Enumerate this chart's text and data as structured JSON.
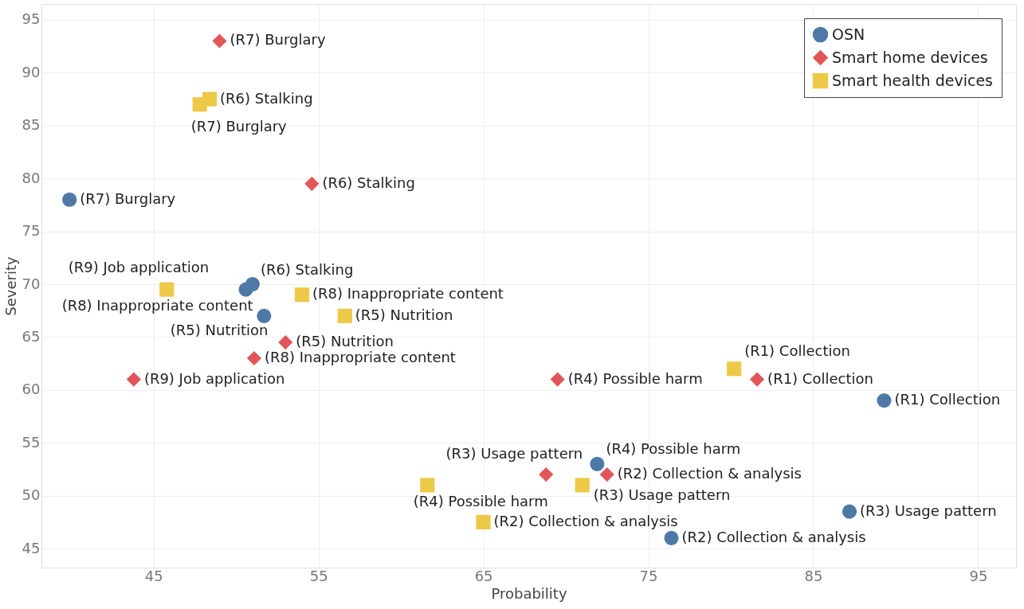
{
  "chart_data": {
    "type": "scatter",
    "xlabel": "Probability",
    "ylabel": "Severity",
    "xlim": [
      38.2,
      97.3
    ],
    "ylim": [
      43.2,
      96.5
    ],
    "xticks": [
      45,
      55,
      65,
      75,
      85,
      95
    ],
    "yticks": [
      45,
      50,
      55,
      60,
      65,
      70,
      75,
      80,
      85,
      90,
      95
    ],
    "grid": true,
    "legend": "top right",
    "series": [
      {
        "name": "OSN",
        "color": "#4e79a7",
        "marker": "circle",
        "x": [
          39.9,
          51.0,
          50.6,
          51.7,
          71.9,
          76.4,
          89.3,
          87.2
        ],
        "values": [
          78,
          70,
          69.5,
          67,
          53,
          46,
          59,
          48.5
        ],
        "value_labels": [
          "(R7) Burglary",
          "(R6) Stalking",
          "(R8) Inappropriate content",
          "(R5) Nutrition",
          "(R4) Possible harm",
          "(R2) Collection & analysis",
          "(R1) Collection",
          "(R3) Usage pattern"
        ]
      },
      {
        "name": "Smart home devices",
        "color": "#e15759",
        "marker": "diamond",
        "x": [
          49.0,
          54.6,
          53.0,
          51.1,
          43.8,
          69.5,
          81.6,
          68.8,
          72.5
        ],
        "values": [
          93,
          79.5,
          64.5,
          63,
          61,
          61,
          61,
          52,
          52
        ],
        "value_labels": [
          "(R7) Burglary",
          "(R6) Stalking",
          "(R5) Nutrition",
          "(R8) Inappropriate content",
          "(R9) Job application",
          "(R4) Possible harm",
          "(R1) Collection",
          "(R3) Usage pattern",
          "(R2) Collection & analysis"
        ]
      },
      {
        "name": "Smart health devices",
        "color": "#edc948",
        "marker": "square",
        "x": [
          48.4,
          47.8,
          45.8,
          54.0,
          56.6,
          80.2,
          71.0,
          61.6,
          65.0
        ],
        "values": [
          87.5,
          87,
          69.5,
          69,
          67,
          62,
          51,
          51,
          47.5
        ],
        "value_labels": [
          "(R6) Stalking",
          "(R7) Burglary",
          "(R9) Job application",
          "(R8) Inappropriate content",
          "(R5) Nutrition",
          "(R1) Collection",
          "(R3) Usage pattern",
          "(R4) Possible harm",
          "(R2) Collection & analysis"
        ]
      }
    ]
  }
}
